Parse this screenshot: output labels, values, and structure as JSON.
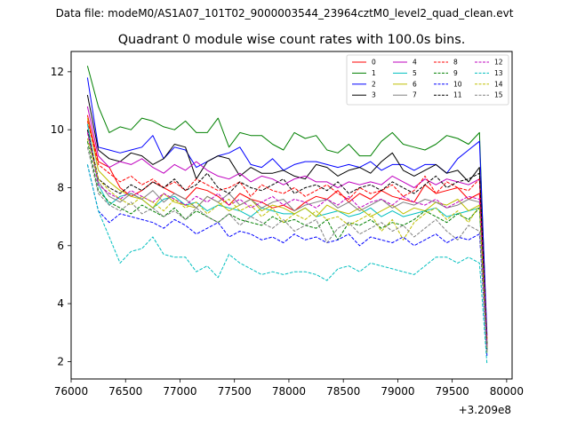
{
  "chart_data": {
    "type": "line",
    "suptitle": "Data file: modeM0/AS1A07_101T02_9000003544_23964cztM0_level2_quad_clean.evt",
    "title": "Quadrant 0 module wise count rates with 100.0s bins.",
    "xlabel": "",
    "ylabel": "",
    "x_offset_label": "+3.209e8",
    "xlim": [
      76000,
      80050
    ],
    "ylim": [
      1.4,
      12.7
    ],
    "x_ticks": [
      76000,
      76500,
      77000,
      77500,
      78000,
      78500,
      79000,
      79500,
      80000
    ],
    "y_ticks": [
      2,
      4,
      6,
      8,
      10,
      12
    ],
    "x_tick_labels": [
      "76000",
      "76500",
      "77000",
      "77500",
      "78000",
      "78500",
      "79000",
      "79500",
      "80000"
    ],
    "y_tick_labels": [
      "2",
      "4",
      "6",
      "8",
      "10",
      "12"
    ],
    "grid": false,
    "legend_position": "top-right",
    "x": [
      76150,
      76250,
      76350,
      76450,
      76550,
      76650,
      76750,
      76850,
      76950,
      77050,
      77150,
      77250,
      77350,
      77450,
      77550,
      77650,
      77750,
      77850,
      77950,
      78050,
      78150,
      78250,
      78350,
      78450,
      78550,
      78650,
      78750,
      78850,
      78950,
      79050,
      79150,
      79250,
      79350,
      79450,
      79550,
      79650,
      79750,
      79820
    ],
    "series": [
      {
        "name": "0",
        "color": "#ff0000",
        "dashed": false,
        "values": [
          10.5,
          8.9,
          8.7,
          8.0,
          7.7,
          7.9,
          8.2,
          8.0,
          7.8,
          7.6,
          8.0,
          7.9,
          7.7,
          7.4,
          7.8,
          7.6,
          7.5,
          7.3,
          7.4,
          7.2,
          7.5,
          7.7,
          7.6,
          7.9,
          7.5,
          7.8,
          7.6,
          7.9,
          7.7,
          7.6,
          7.5,
          8.1,
          7.8,
          7.9,
          8.0,
          7.6,
          7.8,
          2.8
        ]
      },
      {
        "name": "1",
        "color": "#008000",
        "dashed": false,
        "values": [
          12.2,
          10.8,
          9.9,
          10.1,
          10.0,
          10.4,
          10.3,
          10.1,
          10.0,
          10.3,
          9.9,
          9.9,
          10.4,
          9.4,
          9.9,
          9.8,
          9.8,
          9.5,
          9.3,
          9.9,
          9.7,
          9.8,
          9.3,
          9.2,
          9.5,
          9.1,
          9.1,
          9.6,
          9.9,
          9.5,
          9.4,
          9.3,
          9.5,
          9.8,
          9.7,
          9.5,
          9.9,
          2.6
        ]
      },
      {
        "name": "2",
        "color": "#0000ff",
        "dashed": false,
        "values": [
          11.8,
          9.4,
          9.3,
          9.2,
          9.3,
          9.4,
          9.8,
          9.0,
          9.4,
          9.3,
          8.7,
          8.9,
          9.1,
          9.2,
          9.4,
          8.8,
          8.7,
          9.0,
          8.6,
          8.8,
          8.9,
          8.9,
          8.8,
          8.7,
          8.8,
          8.7,
          8.9,
          8.6,
          8.8,
          8.8,
          8.6,
          8.8,
          8.8,
          8.5,
          9.0,
          9.3,
          9.6,
          2.9
        ]
      },
      {
        "name": "3",
        "color": "#000000",
        "dashed": false,
        "values": [
          11.2,
          9.3,
          9.0,
          8.9,
          9.2,
          9.1,
          8.8,
          9.0,
          9.5,
          9.4,
          8.3,
          8.9,
          9.1,
          9.0,
          8.4,
          8.7,
          8.5,
          8.5,
          8.6,
          8.4,
          8.3,
          8.8,
          8.7,
          8.4,
          8.6,
          8.7,
          8.5,
          8.9,
          9.2,
          8.6,
          8.4,
          8.6,
          8.8,
          8.5,
          8.6,
          8.2,
          8.7,
          2.5
        ]
      },
      {
        "name": "4",
        "color": "#bf00bf",
        "dashed": false,
        "values": [
          10.8,
          9.1,
          8.7,
          8.9,
          8.8,
          9.0,
          8.7,
          8.5,
          8.8,
          8.6,
          8.9,
          8.6,
          8.4,
          8.3,
          8.5,
          8.2,
          8.4,
          8.3,
          8.1,
          8.3,
          8.4,
          8.2,
          8.2,
          8.0,
          8.2,
          8.1,
          8.2,
          8.1,
          8.4,
          8.2,
          8.0,
          8.3,
          8.1,
          8.3,
          8.2,
          8.1,
          8.3,
          2.4
        ]
      },
      {
        "name": "5",
        "color": "#00bfbf",
        "dashed": false,
        "values": [
          10.2,
          8.1,
          7.4,
          7.7,
          7.8,
          7.6,
          7.3,
          7.6,
          7.7,
          7.4,
          7.5,
          7.2,
          7.4,
          7.3,
          7.2,
          7.0,
          7.3,
          7.2,
          7.1,
          7.1,
          7.3,
          7.0,
          7.1,
          7.2,
          7.0,
          7.1,
          7.3,
          7.0,
          7.2,
          7.0,
          7.1,
          7.2,
          7.3,
          7.0,
          7.1,
          7.2,
          7.3,
          2.3
        ]
      },
      {
        "name": "6",
        "color": "#bfbf00",
        "dashed": false,
        "values": [
          10.4,
          8.6,
          8.2,
          7.9,
          7.7,
          7.6,
          7.3,
          7.8,
          7.5,
          7.4,
          7.3,
          7.7,
          7.5,
          7.2,
          7.4,
          7.6,
          7.2,
          7.4,
          7.3,
          7.1,
          7.3,
          7.0,
          7.4,
          7.2,
          7.1,
          7.3,
          7.0,
          7.2,
          7.4,
          7.1,
          7.3,
          7.2,
          7.5,
          7.4,
          7.6,
          7.2,
          7.4,
          2.5
        ]
      },
      {
        "name": "7",
        "color": "#808080",
        "dashed": false,
        "values": [
          10.0,
          8.2,
          7.7,
          7.5,
          7.8,
          7.6,
          7.9,
          7.5,
          7.8,
          7.6,
          7.3,
          7.7,
          7.5,
          7.8,
          7.4,
          7.6,
          7.3,
          7.5,
          7.6,
          7.2,
          7.4,
          7.5,
          7.6,
          7.3,
          7.5,
          7.2,
          7.4,
          7.6,
          7.3,
          7.5,
          7.4,
          7.6,
          7.5,
          7.3,
          7.4,
          7.6,
          7.5,
          2.4
        ]
      },
      {
        "name": "8",
        "color": "#ff0000",
        "dashed": true,
        "values": [
          10.3,
          8.8,
          8.5,
          8.2,
          8.4,
          8.1,
          8.3,
          8.0,
          8.2,
          7.9,
          8.3,
          8.1,
          7.9,
          8.0,
          8.2,
          7.7,
          8.1,
          7.9,
          7.8,
          8.0,
          7.7,
          7.9,
          8.1,
          7.8,
          7.6,
          8.0,
          7.8,
          7.9,
          8.1,
          7.7,
          7.9,
          8.4,
          7.8,
          8.2,
          8.0,
          7.9,
          8.3,
          2.7
        ]
      },
      {
        "name": "9",
        "color": "#008000",
        "dashed": true,
        "values": [
          9.6,
          7.9,
          7.5,
          7.3,
          7.1,
          7.4,
          7.2,
          7.0,
          7.3,
          6.9,
          7.2,
          7.0,
          6.8,
          7.1,
          6.9,
          6.8,
          6.7,
          7.0,
          6.8,
          6.9,
          6.7,
          6.6,
          6.9,
          6.2,
          6.8,
          6.7,
          6.9,
          6.6,
          6.8,
          6.7,
          6.9,
          7.2,
          7.0,
          6.8,
          7.1,
          6.9,
          7.3,
          2.4
        ]
      },
      {
        "name": "10",
        "color": "#0000ff",
        "dashed": true,
        "values": [
          8.8,
          7.2,
          6.8,
          7.1,
          7.0,
          6.9,
          6.8,
          6.6,
          6.9,
          6.7,
          6.4,
          6.6,
          6.8,
          6.3,
          6.5,
          6.4,
          6.2,
          6.3,
          6.1,
          6.4,
          6.2,
          6.3,
          6.1,
          6.2,
          6.4,
          6.0,
          6.3,
          6.2,
          6.1,
          6.3,
          6.0,
          6.2,
          6.4,
          6.1,
          6.3,
          6.2,
          6.4,
          2.2
        ]
      },
      {
        "name": "11",
        "color": "#000000",
        "dashed": true,
        "values": [
          10.0,
          8.3,
          8.0,
          7.8,
          8.1,
          7.9,
          8.2,
          8.0,
          8.3,
          7.9,
          8.1,
          8.5,
          8.0,
          7.8,
          8.2,
          8.0,
          7.9,
          8.1,
          8.3,
          7.8,
          8.0,
          8.1,
          7.9,
          8.2,
          7.8,
          8.0,
          8.1,
          7.9,
          8.2,
          8.0,
          7.8,
          8.1,
          8.4,
          8.0,
          8.2,
          8.3,
          8.5,
          2.6
        ]
      },
      {
        "name": "12",
        "color": "#bf00bf",
        "dashed": true,
        "values": [
          9.9,
          8.1,
          7.8,
          7.6,
          7.9,
          7.7,
          7.5,
          7.8,
          7.6,
          7.4,
          7.7,
          7.5,
          7.8,
          7.4,
          7.6,
          7.3,
          7.5,
          7.7,
          7.4,
          7.6,
          7.5,
          7.3,
          7.6,
          7.4,
          7.7,
          7.3,
          7.5,
          7.6,
          7.4,
          7.7,
          7.5,
          7.4,
          7.6,
          7.3,
          7.5,
          7.7,
          7.6,
          2.5
        ]
      },
      {
        "name": "13",
        "color": "#00bfbf",
        "dashed": true,
        "values": [
          8.8,
          7.2,
          6.3,
          5.4,
          5.8,
          5.9,
          6.3,
          5.7,
          5.6,
          5.6,
          5.1,
          5.3,
          4.9,
          5.7,
          5.4,
          5.2,
          5.0,
          5.1,
          5.0,
          5.1,
          5.1,
          5.0,
          4.8,
          5.2,
          5.3,
          5.1,
          5.4,
          5.3,
          5.2,
          5.1,
          5.0,
          5.3,
          5.6,
          5.6,
          5.4,
          5.6,
          5.4,
          1.9
        ]
      },
      {
        "name": "14",
        "color": "#bfbf00",
        "dashed": true,
        "values": [
          9.7,
          8.3,
          7.9,
          7.6,
          7.4,
          7.7,
          7.5,
          7.2,
          7.6,
          7.3,
          7.5,
          7.1,
          7.4,
          7.6,
          7.2,
          7.4,
          7.0,
          7.3,
          6.8,
          7.1,
          6.9,
          7.2,
          6.9,
          7.0,
          6.7,
          6.9,
          7.1,
          6.5,
          6.9,
          6.2,
          6.8,
          7.1,
          7.3,
          6.9,
          7.2,
          6.8,
          7.4,
          2.3
        ]
      },
      {
        "name": "15",
        "color": "#808080",
        "dashed": true,
        "values": [
          9.4,
          7.8,
          7.4,
          7.2,
          7.5,
          7.1,
          7.3,
          7.0,
          7.2,
          6.9,
          7.3,
          7.0,
          6.8,
          7.1,
          6.7,
          7.0,
          6.8,
          6.6,
          6.9,
          6.5,
          6.7,
          6.9,
          6.1,
          6.6,
          6.8,
          6.4,
          6.6,
          6.8,
          6.5,
          6.7,
          6.3,
          6.6,
          6.9,
          6.5,
          6.2,
          6.7,
          6.5,
          2.3
        ]
      }
    ]
  }
}
